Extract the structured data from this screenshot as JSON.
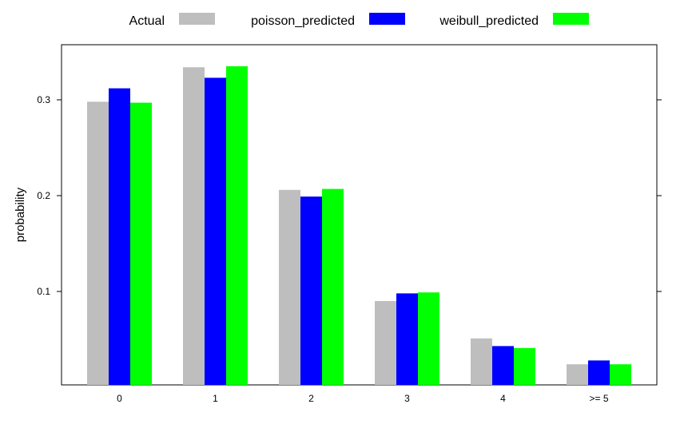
{
  "chart_data": {
    "type": "bar",
    "ylabel": "probability",
    "categories": [
      "0",
      "1",
      "2",
      "3",
      "4",
      ">= 5"
    ],
    "series": [
      {
        "name": "Actual",
        "color": "#bebebe",
        "values": [
          0.298,
          0.334,
          0.206,
          0.09,
          0.051,
          0.024
        ]
      },
      {
        "name": "poisson_predicted",
        "color": "#0000ff",
        "values": [
          0.312,
          0.323,
          0.199,
          0.098,
          0.043,
          0.028
        ]
      },
      {
        "name": "weibull_predicted",
        "color": "#00ff00",
        "values": [
          0.297,
          0.335,
          0.207,
          0.099,
          0.041,
          0.024
        ]
      }
    ],
    "yticks": [
      0.1,
      0.2,
      0.3
    ],
    "ylim": [
      0.0025,
      0.3575
    ],
    "legend_position": "top",
    "grid": false
  }
}
